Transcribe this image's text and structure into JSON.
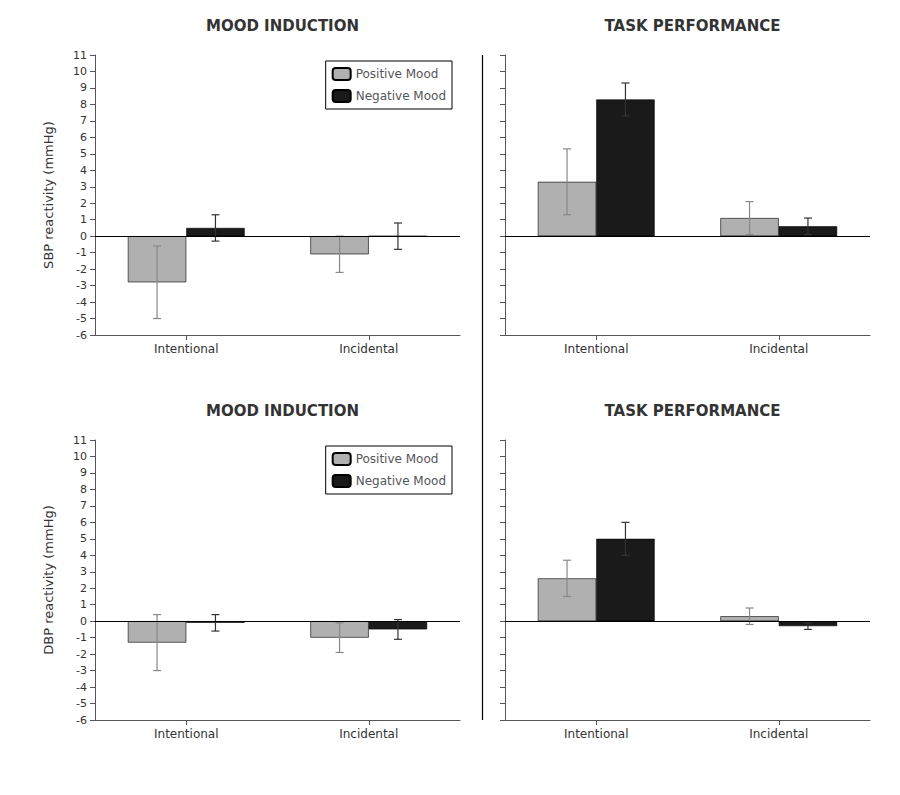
{
  "chart_data": [
    {
      "type": "bar",
      "title": "MOOD INDUCTION",
      "ylabel": "SBP reactivity (mmHg)",
      "categories": [
        "Intentional",
        "Incidental"
      ],
      "series": [
        {
          "name": "Positive Mood",
          "color": "#b0b0b0",
          "values": [
            -2.8,
            -1.1
          ],
          "errors": [
            2.2,
            1.1
          ]
        },
        {
          "name": "Negative Mood",
          "color": "#1a1a1a",
          "values": [
            0.5,
            0.0
          ],
          "errors": [
            0.8,
            0.8
          ]
        }
      ],
      "ylim": [
        -6,
        11
      ],
      "yticks": [
        -6,
        -5,
        -4,
        -3,
        -2,
        -1,
        0,
        1,
        2,
        3,
        4,
        5,
        6,
        7,
        8,
        9,
        10,
        11
      ],
      "grid": false,
      "legend": "upper right"
    },
    {
      "type": "bar",
      "title": "TASK PERFORMANCE",
      "categories": [
        "Intentional",
        "Incidental"
      ],
      "series": [
        {
          "name": "Positive Mood",
          "color": "#b0b0b0",
          "values": [
            3.3,
            1.1
          ],
          "errors": [
            2.0,
            1.0
          ]
        },
        {
          "name": "Negative Mood",
          "color": "#1a1a1a",
          "values": [
            8.3,
            0.6
          ],
          "errors": [
            1.0,
            0.5
          ]
        }
      ],
      "ylim": [
        -6,
        11
      ],
      "yticks": [
        -6,
        -5,
        -4,
        -3,
        -2,
        -1,
        0,
        1,
        2,
        3,
        4,
        5,
        6,
        7,
        8,
        9,
        10,
        11
      ],
      "grid": false,
      "tick_labels": "x"
    },
    {
      "type": "bar",
      "title": "MOOD INDUCTION",
      "ylabel": "DBP reactivity (mmHg)",
      "categories": [
        "Intentional",
        "Incidental"
      ],
      "series": [
        {
          "name": "Positive Mood",
          "color": "#b0b0b0",
          "values": [
            -1.3,
            -1.0
          ],
          "errors": [
            1.7,
            0.9
          ]
        },
        {
          "name": "Negative Mood",
          "color": "#1a1a1a",
          "values": [
            -0.1,
            -0.5
          ],
          "errors": [
            0.5,
            0.6
          ]
        }
      ],
      "ylim": [
        -6,
        11
      ],
      "yticks": [
        -6,
        -5,
        -4,
        -3,
        -2,
        -1,
        0,
        1,
        2,
        3,
        4,
        5,
        6,
        7,
        8,
        9,
        10,
        11
      ],
      "grid": false,
      "legend": "upper right"
    },
    {
      "type": "bar",
      "title": "TASK PERFORMANCE",
      "categories": [
        "Intentional",
        "Incidental"
      ],
      "series": [
        {
          "name": "Positive Mood",
          "color": "#b0b0b0",
          "values": [
            2.6,
            0.3
          ],
          "errors": [
            1.1,
            0.5
          ]
        },
        {
          "name": "Negative Mood",
          "color": "#1a1a1a",
          "values": [
            5.0,
            -0.3
          ],
          "errors": [
            1.0,
            0.2
          ]
        }
      ],
      "ylim": [
        -6,
        11
      ],
      "yticks": [
        -6,
        -5,
        -4,
        -3,
        -2,
        -1,
        0,
        1,
        2,
        3,
        4,
        5,
        6,
        7,
        8,
        9,
        10,
        11
      ],
      "grid": false,
      "tick_labels": "x"
    }
  ]
}
